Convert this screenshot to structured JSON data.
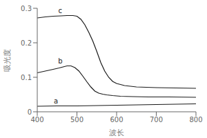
{
  "chart_data": {
    "type": "line",
    "title": "",
    "xlabel": "波长",
    "ylabel": "吸光度",
    "color": "#1a1a1a",
    "xlim": [
      400,
      800
    ],
    "ylim": [
      0,
      0.3
    ],
    "xticks": [
      400,
      500,
      600,
      700,
      800
    ],
    "yticks": [
      0,
      0.1,
      0.2,
      0.3
    ],
    "series": [
      {
        "x": [
          400,
          420,
          440,
          460,
          475,
          490,
          500,
          510,
          520,
          530,
          540,
          550,
          560,
          570,
          580,
          590,
          600,
          620,
          650,
          700,
          750,
          800
        ],
        "values": [
          0.272,
          0.275,
          0.277,
          0.278,
          0.279,
          0.279,
          0.277,
          0.268,
          0.252,
          0.23,
          0.205,
          0.175,
          0.143,
          0.118,
          0.1,
          0.088,
          0.082,
          0.076,
          0.072,
          0.07,
          0.069,
          0.068
        ]
      },
      {
        "x": [
          400,
          420,
          440,
          455,
          465,
          475,
          485,
          495,
          505,
          515,
          525,
          535,
          545,
          555,
          565,
          575,
          590,
          610,
          640,
          680,
          730,
          800
        ],
        "values": [
          0.113,
          0.118,
          0.123,
          0.127,
          0.13,
          0.133,
          0.133,
          0.128,
          0.118,
          0.103,
          0.087,
          0.072,
          0.06,
          0.054,
          0.051,
          0.049,
          0.047,
          0.045,
          0.044,
          0.043,
          0.043,
          0.042
        ]
      },
      {
        "x": [
          400,
          450,
          500,
          550,
          600,
          650,
          700,
          750,
          800
        ],
        "values": [
          0.016,
          0.017,
          0.017,
          0.018,
          0.019,
          0.02,
          0.021,
          0.022,
          0.023
        ]
      }
    ],
    "annotations": [
      {
        "text": "c",
        "x": 458,
        "y": 0.284
      },
      {
        "text": "b",
        "x": 458,
        "y": 0.139
      },
      {
        "text": "a",
        "x": 447,
        "y": 0.022
      }
    ]
  }
}
